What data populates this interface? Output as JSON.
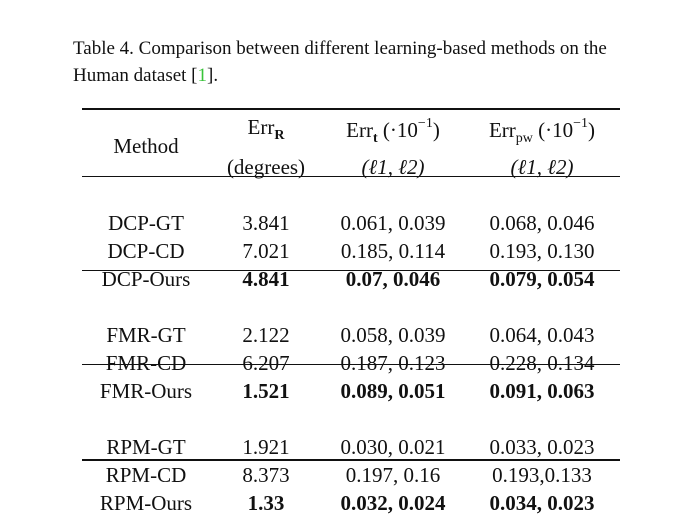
{
  "caption": {
    "prefix": "Table 4. Comparison between different learning-based methods on the Human dataset [",
    "cite": "1",
    "suffix": "]."
  },
  "header": {
    "method": "Method",
    "col_r_main": "Err",
    "col_r_sub": "R",
    "col_r_unit": "(degrees)",
    "col_t_main": "Err",
    "col_t_sub": "t",
    "col_t_unit_pre": "(·10",
    "col_t_unit_exp": "−1",
    "col_t_unit_post": ")",
    "col_t_norms": "(ℓ1, ℓ2)",
    "col_pw_main": "Err",
    "col_pw_sub": "pw",
    "col_pw_unit_pre": "(·10",
    "col_pw_unit_exp": "−1",
    "col_pw_unit_post": ")",
    "col_pw_norms": "(ℓ1, ℓ2)"
  },
  "groups": [
    {
      "rows": [
        {
          "method": "DCP-GT",
          "r": "3.841",
          "t": "0.061, 0.039",
          "pw": "0.068, 0.046"
        },
        {
          "method": "DCP-CD",
          "r": "7.021",
          "t": "0.185, 0.114",
          "pw": "0.193, 0.130"
        },
        {
          "method": "DCP-Ours",
          "r": "4.841",
          "t": "0.07, 0.046",
          "pw": "0.079, 0.054"
        }
      ]
    },
    {
      "rows": [
        {
          "method": "FMR-GT",
          "r": "2.122",
          "t": "0.058, 0.039",
          "pw": "0.064, 0.043"
        },
        {
          "method": "FMR-CD",
          "r": "6.207",
          "t": "0.187, 0.123",
          "pw": "0.228, 0.134"
        },
        {
          "method": "FMR-Ours",
          "r": "1.521",
          "t": "0.089, 0.051",
          "pw": "0.091, 0.063"
        }
      ]
    },
    {
      "rows": [
        {
          "method": "RPM-GT",
          "r": "1.921",
          "t": "0.030, 0.021",
          "pw": "0.033, 0.023"
        },
        {
          "method": "RPM-CD",
          "r": "8.373",
          "t": "0.197, 0.16",
          "pw": "0.193,0.133"
        },
        {
          "method": "RPM-Ours",
          "r": "1.33",
          "t": "0.032, 0.024",
          "pw": "0.034, 0.023"
        }
      ]
    }
  ]
}
